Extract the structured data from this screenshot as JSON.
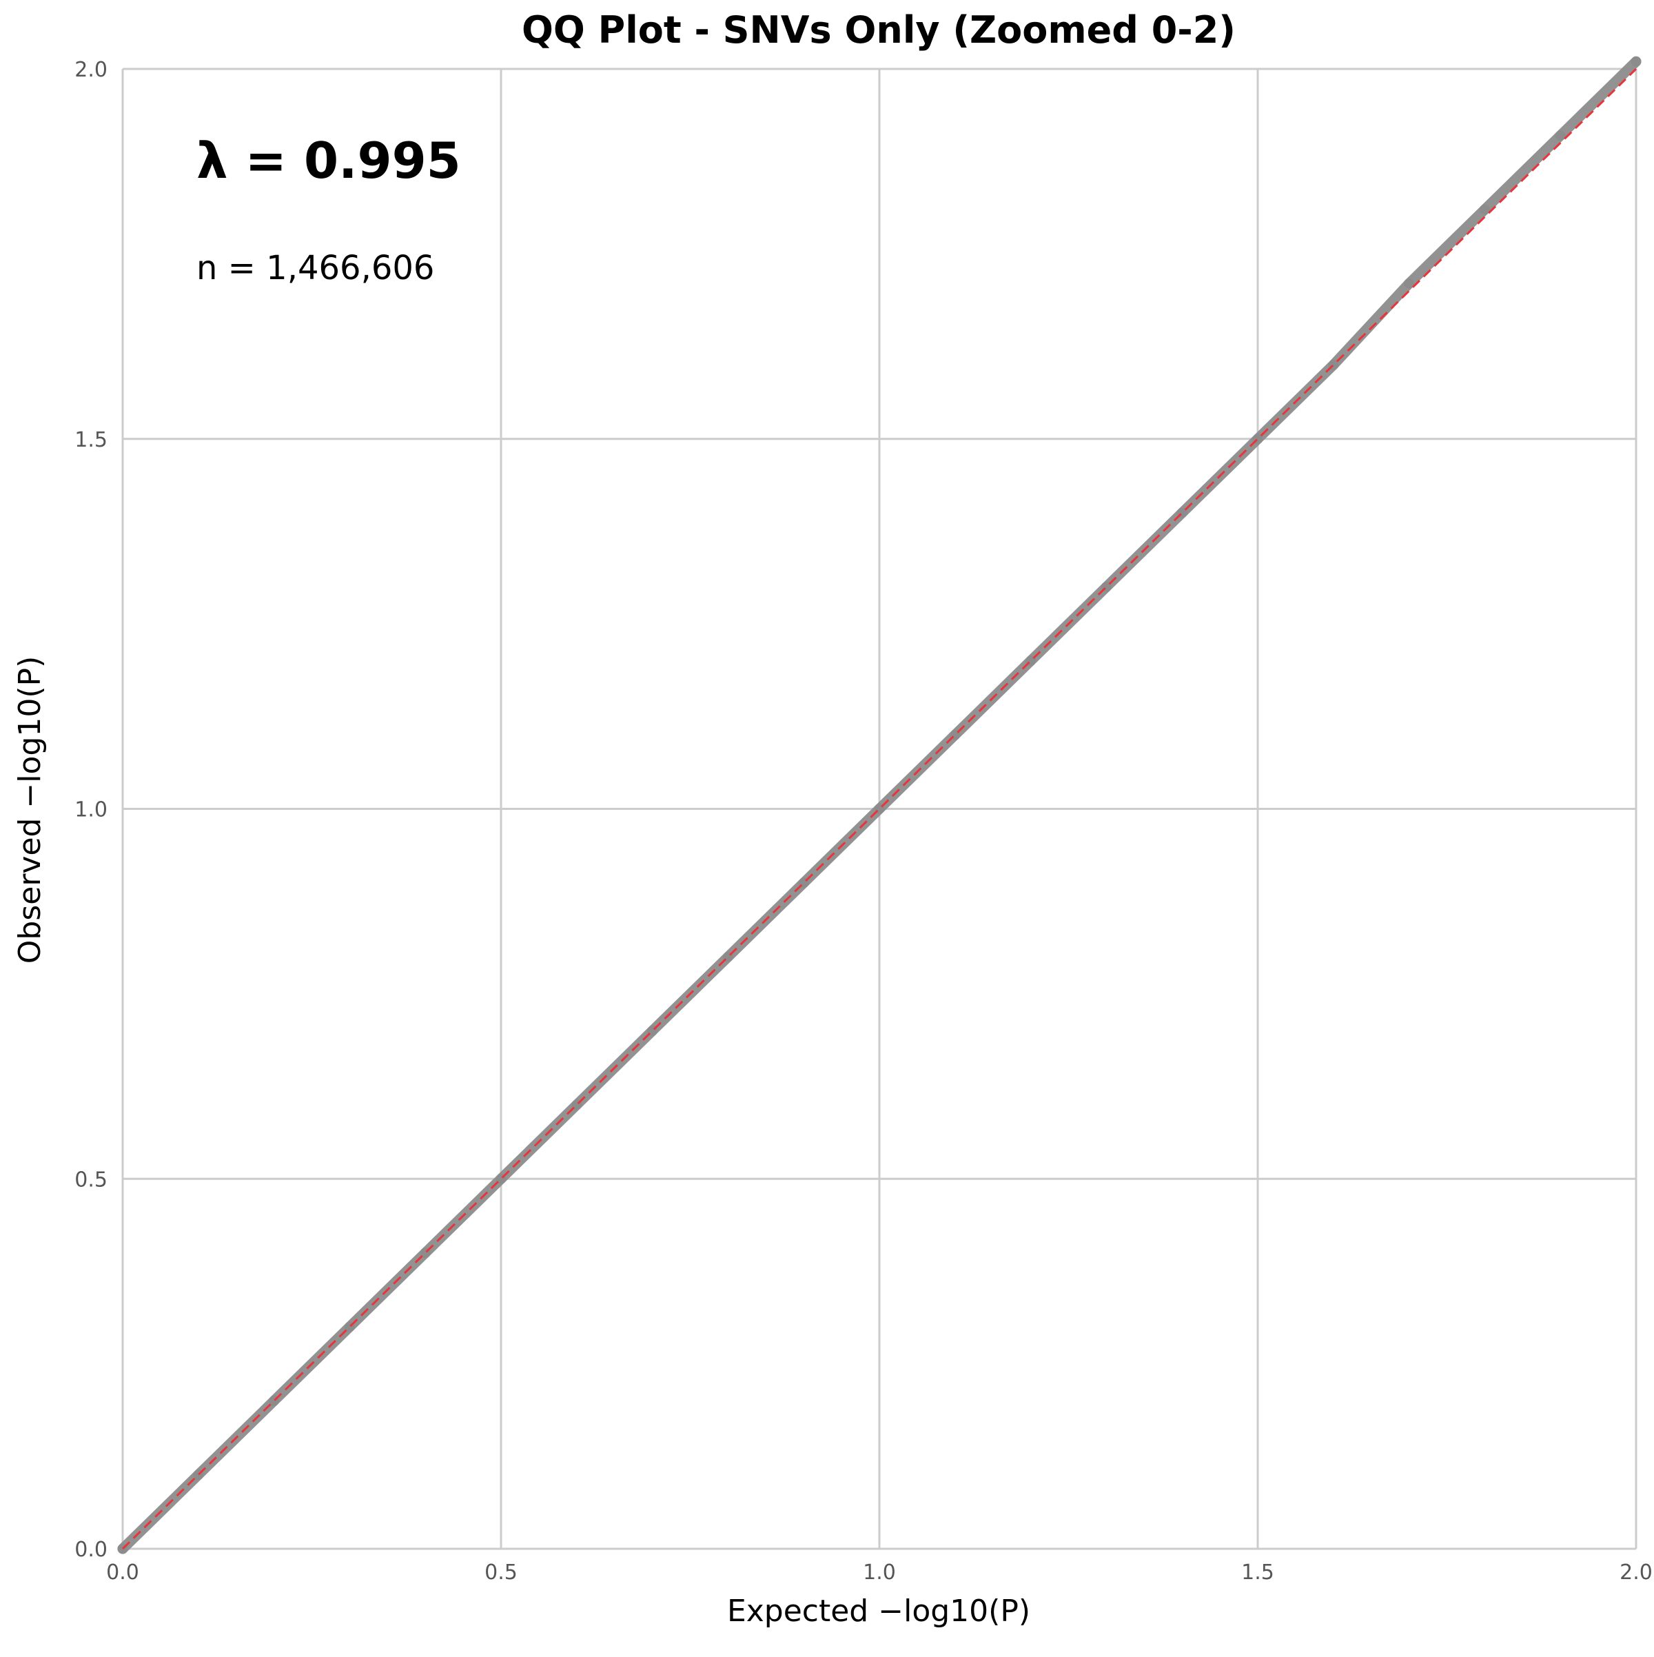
{
  "chart_data": {
    "type": "scatter",
    "title": "QQ Plot - SNVs Only (Zoomed 0-2)",
    "xlabel": "Expected −log10(P)",
    "ylabel": "Observed −log10(P)",
    "xlim": [
      0,
      2
    ],
    "ylim": [
      0,
      2
    ],
    "x_ticks": [
      "0.0",
      "0.5",
      "1.0",
      "1.5",
      "2.0"
    ],
    "y_ticks": [
      "0.0",
      "0.5",
      "1.0",
      "1.5",
      "2.0"
    ],
    "grid": true,
    "annotations": {
      "lambda": "λ = 0.995",
      "n": "n = 1,466,606"
    },
    "series": [
      {
        "role": "observed",
        "color": "#8c8c8c",
        "x": [
          0.0,
          0.1,
          0.2,
          0.3,
          0.4,
          0.5,
          0.6,
          0.7,
          0.8,
          0.9,
          1.0,
          1.1,
          1.2,
          1.3,
          1.4,
          1.5,
          1.6,
          1.7,
          1.8,
          1.9,
          2.0
        ],
        "y": [
          0.0,
          0.1,
          0.2,
          0.3,
          0.4,
          0.5,
          0.6,
          0.7,
          0.8,
          0.9,
          1.0,
          1.1,
          1.2,
          1.3,
          1.4,
          1.5,
          1.6,
          1.71,
          1.81,
          1.91,
          2.01
        ]
      },
      {
        "role": "expected",
        "color": "#e8353b",
        "line": "dashed",
        "x": [
          0,
          2
        ],
        "y": [
          0,
          2
        ]
      }
    ]
  }
}
